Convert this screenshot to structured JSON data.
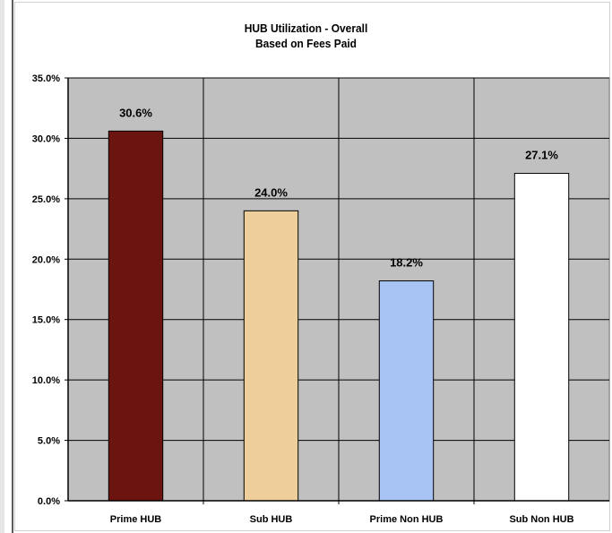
{
  "chart_data": {
    "type": "bar",
    "title": "HUB Utilization  - Overall",
    "subtitle": "Based on Fees Paid",
    "xlabel": "",
    "ylabel": "",
    "categories": [
      "Prime HUB",
      "Sub HUB",
      "Prime Non HUB",
      "Sub Non HUB"
    ],
    "values": [
      30.6,
      24.0,
      18.2,
      27.1
    ],
    "data_labels": [
      "30.6%",
      "24.0%",
      "18.2%",
      "27.1%"
    ],
    "bar_colors": [
      "#6b1410",
      "#eecf9b",
      "#a8c4f5",
      "#ffffff"
    ],
    "ylim": [
      0,
      35
    ],
    "yticks": [
      0,
      5,
      10,
      15,
      20,
      25,
      30,
      35
    ],
    "ytick_labels": [
      "0.0%",
      "5.0%",
      "10.0%",
      "15.0%",
      "20.0%",
      "25.0%",
      "30.0%",
      "35.0%"
    ],
    "grid": true,
    "legend": "none",
    "plot_background": "#c0c0c0"
  }
}
